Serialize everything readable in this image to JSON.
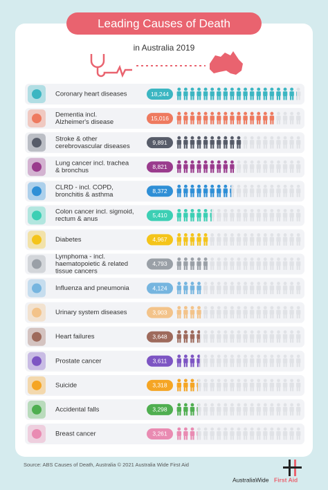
{
  "chart_data": {
    "type": "pictogram",
    "title": "Leading Causes of Death",
    "subtitle": "in Australia 2019",
    "categories": [
      [
        "Coronary heart diseases"
      ],
      [
        "Dementia incl.",
        "Alzheimer's disease"
      ],
      [
        "Stroke & other",
        "cerebrovascular diseases"
      ],
      [
        "Lung cancer incl. trachea",
        "& bronchus"
      ],
      [
        "CLRD - incl.  COPD,",
        "bronchitis & asthma"
      ],
      [
        "Colon cancer incl. sigmoid,",
        "rectum & anus"
      ],
      [
        "Diabetes"
      ],
      [
        "Lymphoma - incl.",
        "haematopoietic & related",
        "tissue cancers"
      ],
      [
        "Influenza and pneumonia"
      ],
      [
        "Urinary system diseases"
      ],
      [
        "Heart failures"
      ],
      [
        "Prostate cancer"
      ],
      [
        "Suicide"
      ],
      [
        "Accidental falls"
      ],
      [
        "Breast cancer"
      ]
    ],
    "values": [
      18244,
      15016,
      9891,
      8821,
      8372,
      5410,
      4967,
      4793,
      4124,
      3903,
      3648,
      3611,
      3318,
      3298,
      3261
    ],
    "value_labels": [
      "18,244",
      "15,016",
      "9,891",
      "8,821",
      "8,372",
      "5,410",
      "4,967",
      "4,793",
      "4,124",
      "3,903",
      "3,648",
      "3,611",
      "3,318",
      "3,298",
      "3,261"
    ],
    "colors": [
      "#3cb6c2",
      "#ee7a5f",
      "#575c69",
      "#9a3b8d",
      "#2f8fd6",
      "#3ccfb4",
      "#f4c41a",
      "#9aa0a7",
      "#76b5df",
      "#f3c38a",
      "#9e6a5c",
      "#7d55c3",
      "#f5a524",
      "#4fae50",
      "#e98bb2"
    ],
    "xlim": [
      0,
      19000
    ],
    "source": "Source: ABS Causes of Death, Australia © 2021 Australia Wide First Aid",
    "logo": [
      "AustraliaWide",
      "First Aid"
    ]
  }
}
